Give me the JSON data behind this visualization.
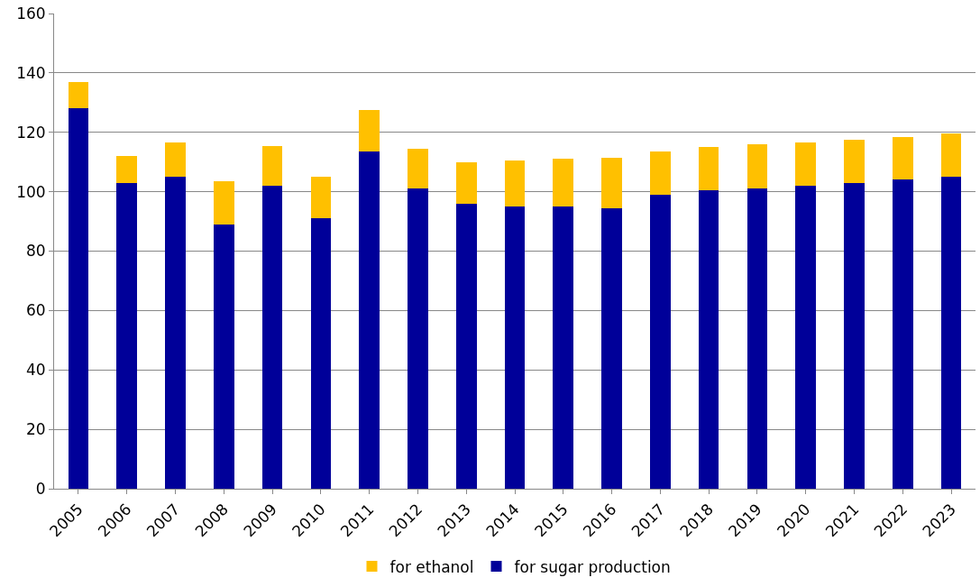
{
  "chart_data": {
    "type": "bar",
    "stacked": true,
    "categories": [
      "2005",
      "2006",
      "2007",
      "2008",
      "2009",
      "2010",
      "2011",
      "2012",
      "2013",
      "2014",
      "2015",
      "2016",
      "2017",
      "2018",
      "2019",
      "2020",
      "2021",
      "2022",
      "2023"
    ],
    "series": [
      {
        "name": "for sugar production",
        "color": "#000099",
        "values": [
          128,
          103,
          105,
          89,
          102,
          91,
          113.5,
          101,
          96,
          95,
          95,
          94.5,
          99,
          100.5,
          101,
          102,
          103,
          104,
          105
        ]
      },
      {
        "name": "for ethanol",
        "color": "#ffc000",
        "values": [
          9,
          9,
          11.5,
          14.5,
          13.5,
          14,
          14,
          13.5,
          14,
          15.5,
          16,
          17,
          14.5,
          14.5,
          15,
          14.5,
          14.5,
          14.5,
          14.5
        ]
      }
    ],
    "ylim": [
      0,
      160
    ],
    "yticks": [
      0,
      20,
      40,
      60,
      80,
      100,
      120,
      140,
      160
    ],
    "grid": "y",
    "legend": "bottom"
  }
}
